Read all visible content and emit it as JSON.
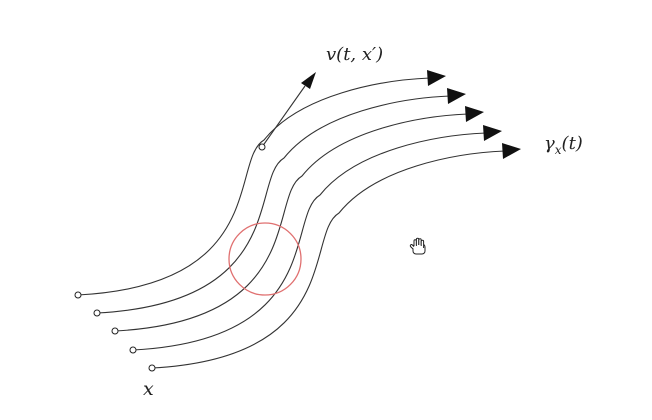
{
  "diagram": {
    "labels": {
      "velocity": "v(t, x′)",
      "curve": "γx(t)",
      "curve_base": "γ",
      "curve_sub": "x",
      "curve_arg": "(t)",
      "start": "x"
    },
    "flow_line_count": 5,
    "colors": {
      "lines": "#333333",
      "arrowheads": "#111111",
      "highlight_ring": "#e07070",
      "background": "#ffffff"
    },
    "cursor": "open-hand-cursor-icon"
  }
}
